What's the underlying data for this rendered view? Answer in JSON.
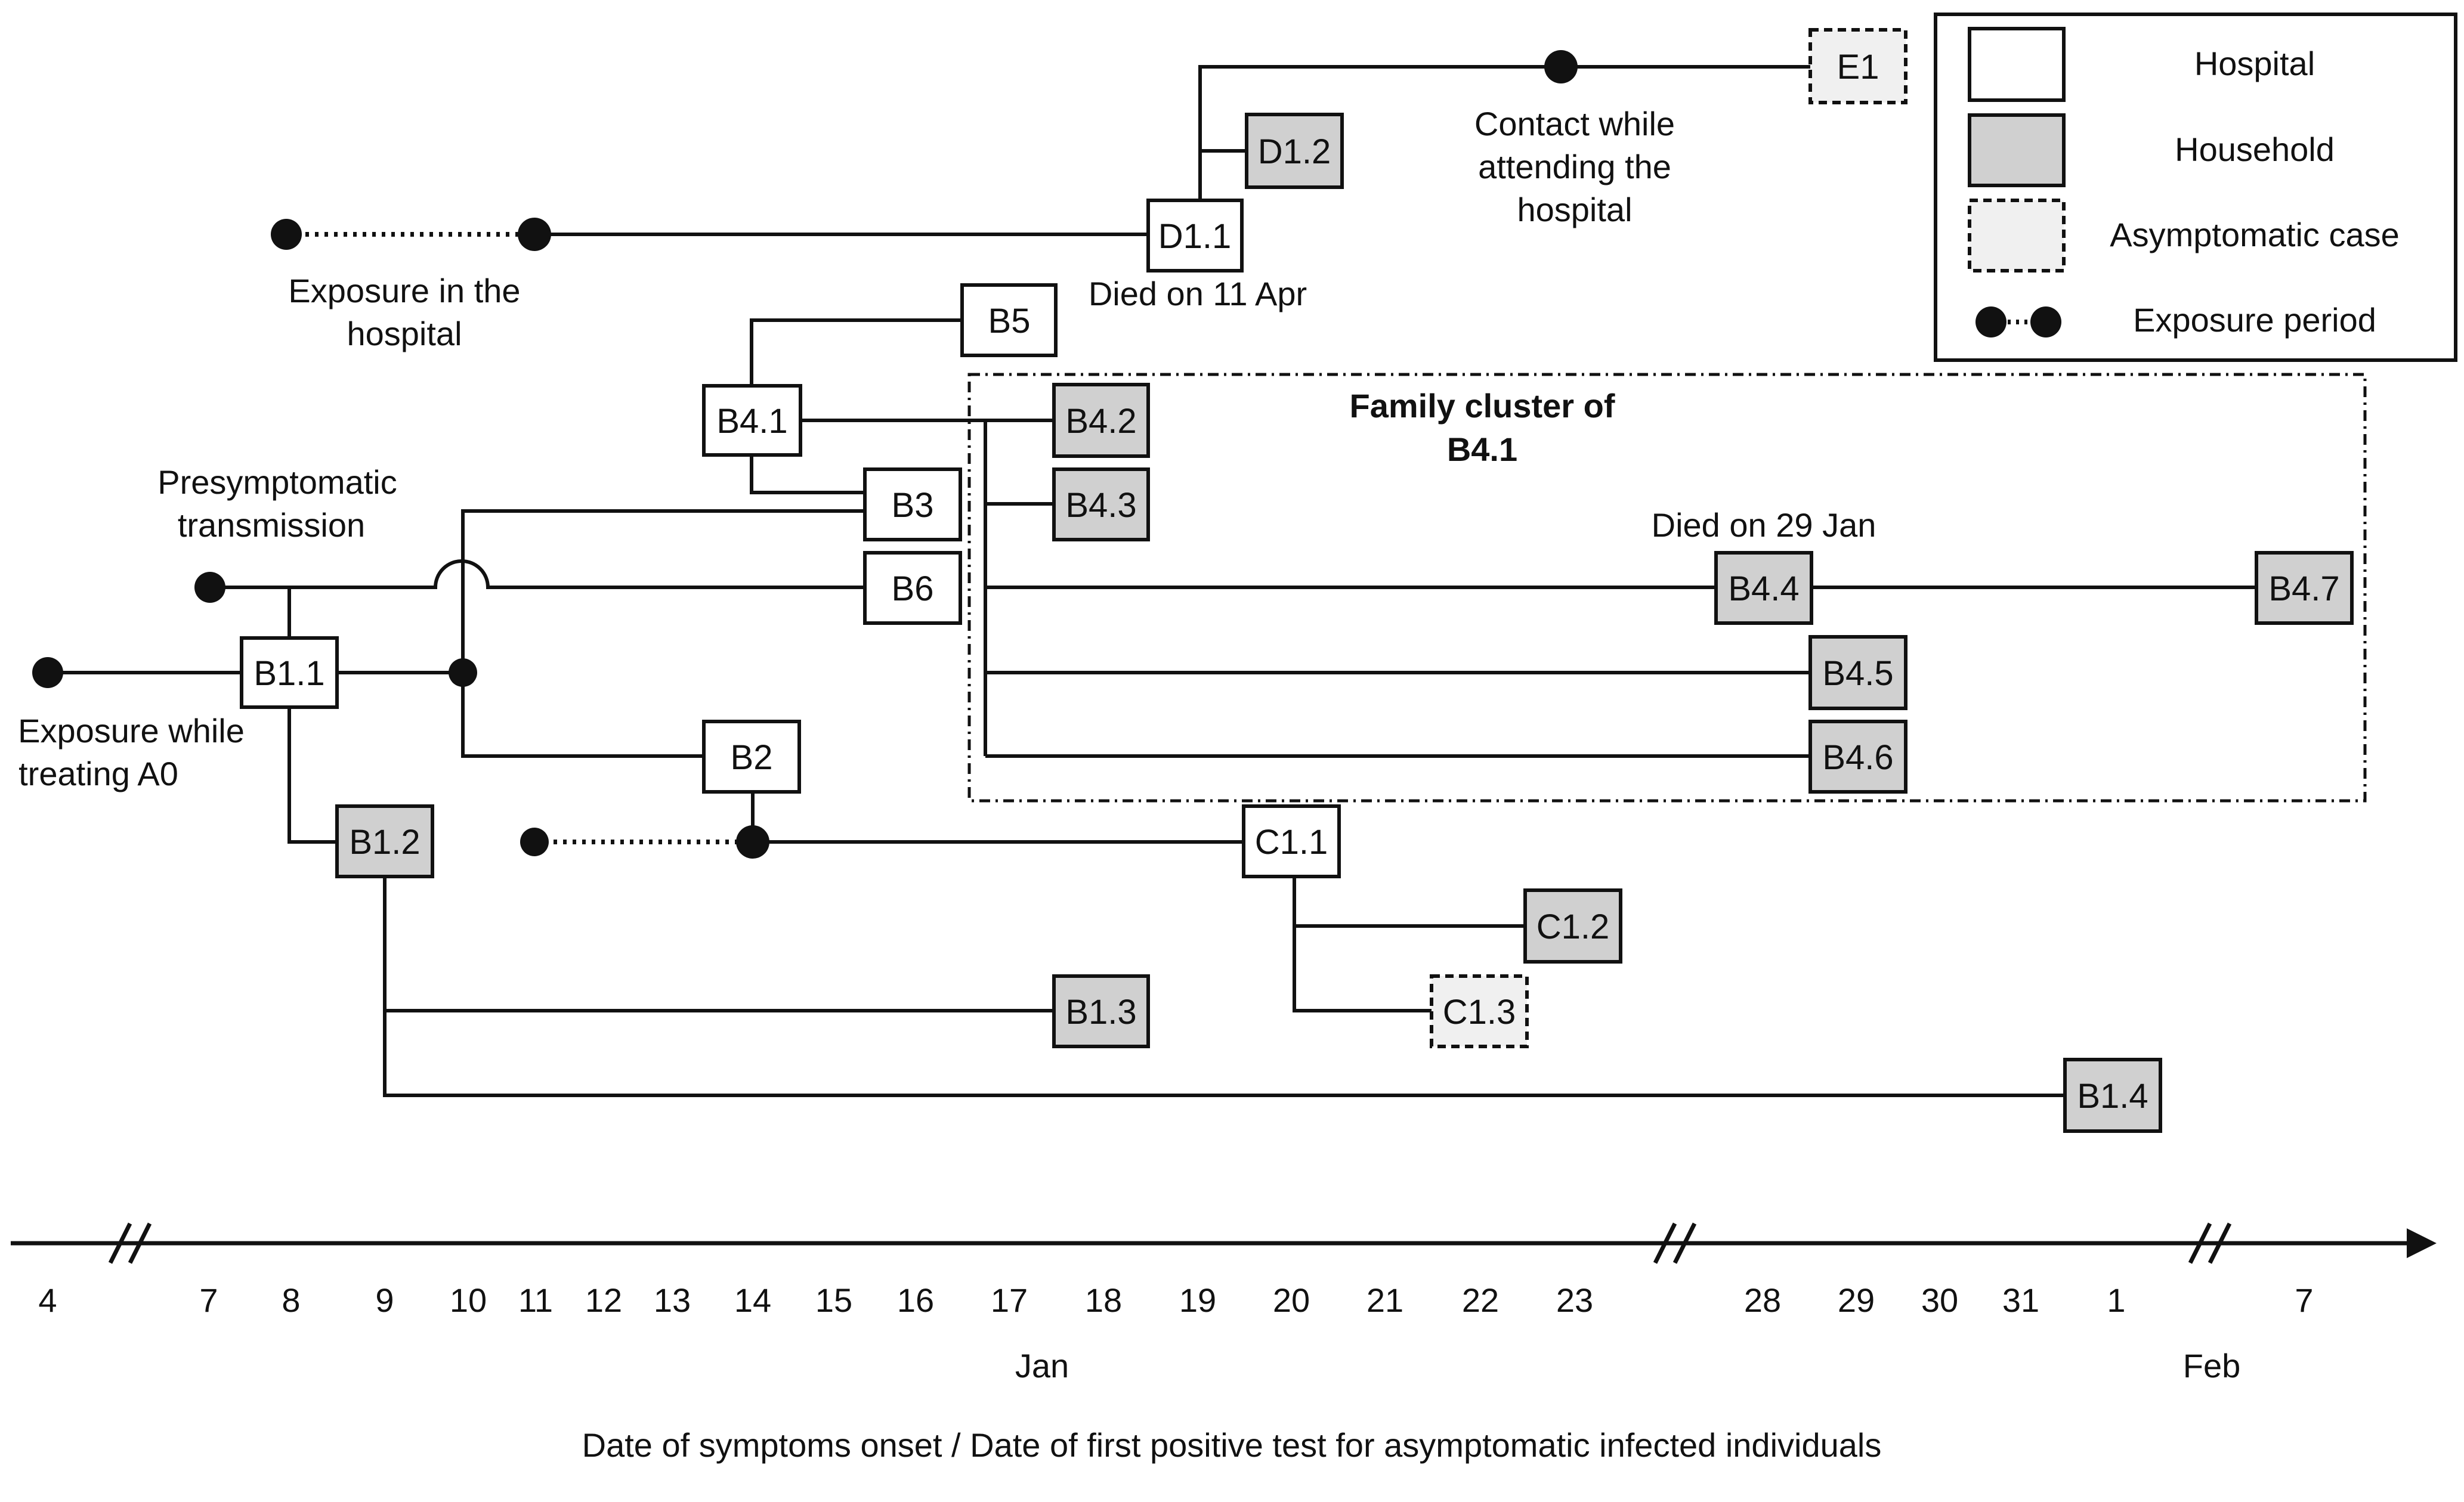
{
  "legend": {
    "hospital": "Hospital",
    "household": "Household",
    "asymptomatic": "Asymptomatic case",
    "exposure": "Exposure period"
  },
  "cases": {
    "E1": "E1",
    "D1_2": "D1.2",
    "D1_1": "D1.1",
    "B5": "B5",
    "B4_1": "B4.1",
    "B4_2": "B4.2",
    "B3": "B3",
    "B4_3": "B4.3",
    "B6": "B6",
    "B4_4": "B4.4",
    "B4_7": "B4.7",
    "B1_1": "B1.1",
    "B4_5": "B4.5",
    "B2": "B2",
    "B4_6": "B4.6",
    "B1_2": "B1.2",
    "C1_1": "C1.1",
    "C1_2": "C1.2",
    "C1_3": "C1.3",
    "B1_3": "B1.3",
    "B1_4": "B1.4"
  },
  "annotations": {
    "contact_1": "Contact while",
    "contact_2": "attending the",
    "contact_3": "hospital",
    "exposure_hospital_1": "Exposure in the",
    "exposure_hospital_2": "hospital",
    "died_apr": "Died on 11 Apr",
    "family_1": "Family cluster of",
    "family_2": "B4.1",
    "presymp_1": "Presymptomatic",
    "presymp_2": "transmission",
    "died_jan": "Died on 29 Jan",
    "exposure_a0_1": "Exposure while",
    "exposure_a0_2": "treating A0"
  },
  "axis": {
    "ticks": [
      "4",
      "7",
      "8",
      "9",
      "10",
      "11",
      "12",
      "13",
      "14",
      "15",
      "16",
      "17",
      "18",
      "19",
      "20",
      "21",
      "22",
      "23",
      "28",
      "29",
      "30",
      "31",
      "1",
      "7"
    ],
    "month_jan": "Jan",
    "month_feb": "Feb",
    "title": "Date of symptoms onset / Date of first positive test for asymptomatic infected individuals"
  }
}
